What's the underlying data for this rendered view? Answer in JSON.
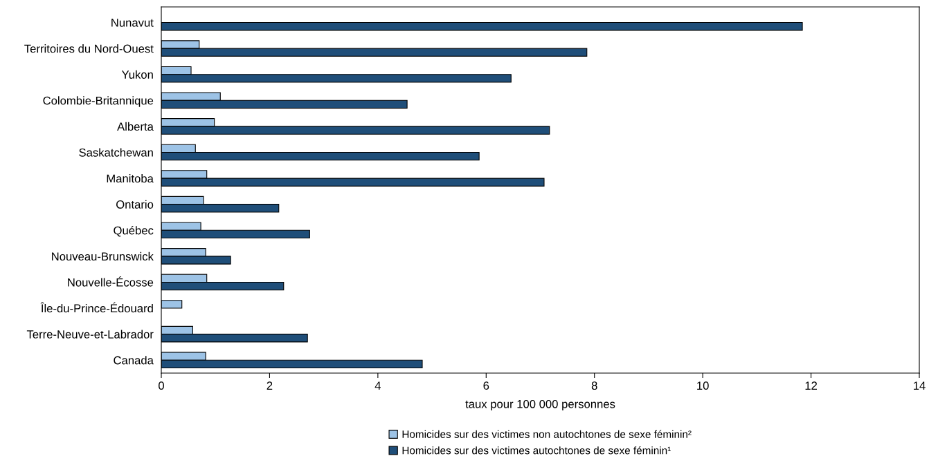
{
  "chart_data": {
    "type": "bar",
    "orientation": "horizontal",
    "xlabel": "taux pour 100 000 personnes",
    "categories": [
      "Nunavut",
      "Territoires du Nord-Ouest",
      "Yukon",
      "Colombie-Britannique",
      "Alberta",
      "Saskatchewan",
      "Manitoba",
      "Ontario",
      "Québec",
      "Nouveau-Brunswick",
      "Nouvelle-Écosse",
      "Île-du-Prince-Édouard",
      "Terre-Neuve-et-Labrador",
      "Canada"
    ],
    "series": [
      {
        "name": "Homicides sur des victimes non autochtones de sexe féminin²",
        "color": "#9dc3e6",
        "values": [
          null,
          0.7,
          0.55,
          1.09,
          0.98,
          0.63,
          0.84,
          0.78,
          0.73,
          0.82,
          0.84,
          0.38,
          0.58,
          0.82
        ]
      },
      {
        "name": "Homicides sur des victimes autochtones de sexe féminin¹",
        "color": "#1f4e79",
        "values": [
          11.84,
          7.86,
          6.46,
          4.54,
          7.17,
          5.87,
          7.07,
          2.17,
          2.74,
          1.28,
          2.26,
          null,
          2.7,
          4.82
        ]
      }
    ],
    "xlim": [
      0,
      14
    ],
    "xticks": [
      0,
      2,
      4,
      6,
      8,
      10,
      12,
      14
    ],
    "grid": false,
    "legend": "bottom"
  }
}
